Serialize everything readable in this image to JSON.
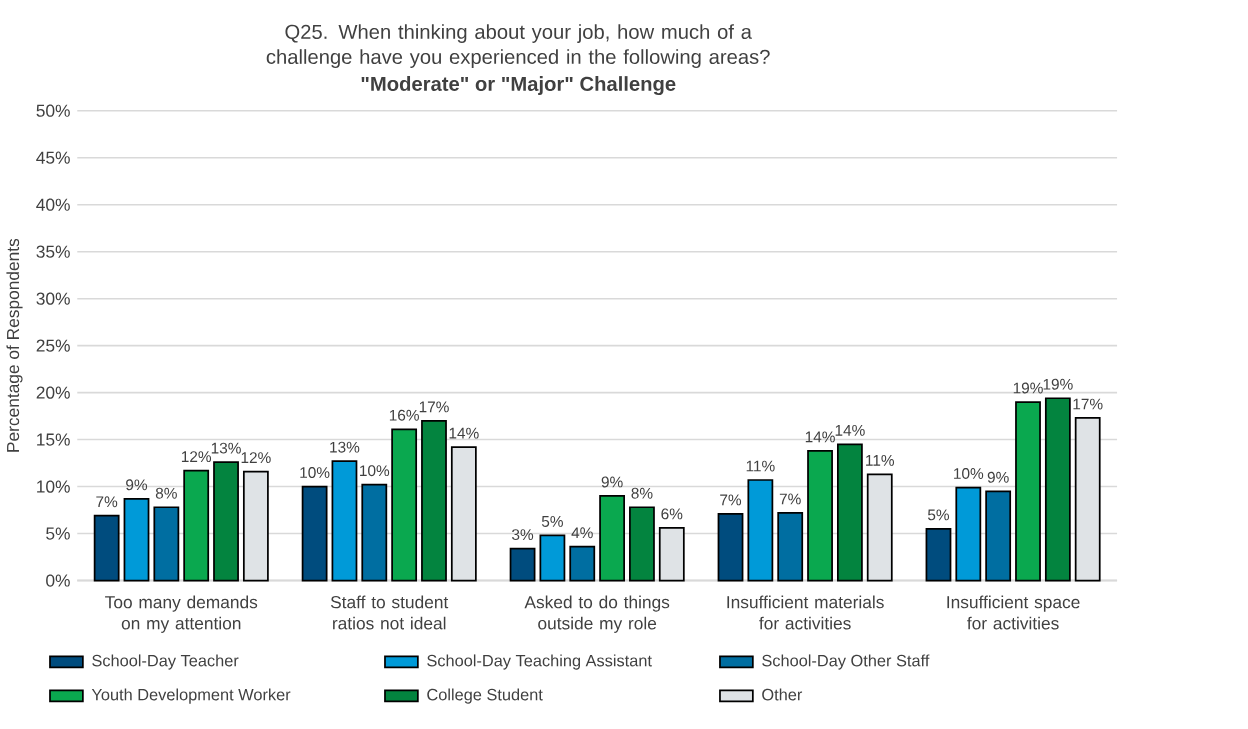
{
  "chart_data": {
    "type": "bar",
    "title": "Q25. When thinking about your job, how much of a challenge have you experienced in the following areas?",
    "subtitle": "\"Moderate\" or \"Major\" Challenge",
    "ylabel": "Percentage of Respondents",
    "categories": [
      "Too many demands on my attention",
      "Staff to student ratios not ideal",
      "Asked to do things outside my role",
      "Insufficient materials for activities",
      "Insufficient space for activities"
    ],
    "series": [
      {
        "name": "School-Day Teacher",
        "color": "#004c7e",
        "values": [
          6.9,
          10.0,
          3.4,
          7.1,
          5.5
        ],
        "value_labels": [
          "7%",
          "10%",
          "3%",
          "7%",
          "5%"
        ]
      },
      {
        "name": "School-Day Teaching Assistant",
        "color": "#009ad8",
        "values": [
          8.7,
          12.7,
          4.8,
          10.7,
          9.9
        ],
        "value_labels": [
          "9%",
          "13%",
          "5%",
          "11%",
          "10%"
        ]
      },
      {
        "name": "School-Day Other Staff",
        "color": "#006ea1",
        "values": [
          7.8,
          10.2,
          3.6,
          7.2,
          9.5
        ],
        "value_labels": [
          "8%",
          "10%",
          "4%",
          "7%",
          "9%"
        ]
      },
      {
        "name": "Youth Development Worker",
        "color": "#0aa84f",
        "values": [
          11.7,
          16.1,
          9.0,
          13.8,
          19.0
        ],
        "value_labels": [
          "12%",
          "16%",
          "9%",
          "14%",
          "19%"
        ]
      },
      {
        "name": "College Student",
        "color": "#03843f",
        "values": [
          12.6,
          17.0,
          7.8,
          14.5,
          19.4
        ],
        "value_labels": [
          "13%",
          "17%",
          "8%",
          "14%",
          "19%"
        ]
      },
      {
        "name": "Other",
        "color": "#dfe3e6",
        "values": [
          11.6,
          14.2,
          5.6,
          11.3,
          17.3
        ],
        "value_labels": [
          "12%",
          "14%",
          "6%",
          "11%",
          "17%"
        ]
      }
    ],
    "ylim": [
      0,
      50
    ],
    "yticks": [
      {
        "value": 0,
        "label": "0%"
      },
      {
        "value": 5,
        "label": "5%"
      },
      {
        "value": 10,
        "label": "10%"
      },
      {
        "value": 15,
        "label": "15%"
      },
      {
        "value": 20,
        "label": "20%"
      },
      {
        "value": 25,
        "label": "25%"
      },
      {
        "value": 30,
        "label": "30%"
      },
      {
        "value": 35,
        "label": "35%"
      },
      {
        "value": 40,
        "label": "40%"
      },
      {
        "value": 45,
        "label": "45%"
      },
      {
        "value": 50,
        "label": "50%"
      }
    ],
    "grid": "y",
    "legend": "bottom"
  }
}
